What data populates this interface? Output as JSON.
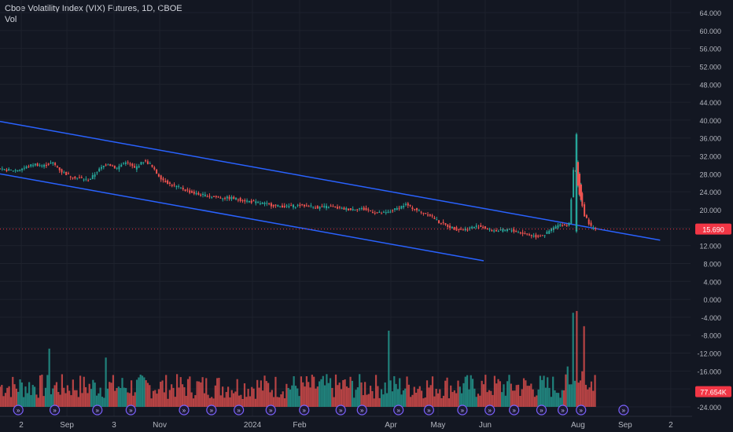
{
  "header": {
    "title": "Cboe Volatility Index (VIX) Futures, 1D, CBOE",
    "vol_label": "Vol"
  },
  "colors": {
    "background": "#131722",
    "grid": "#1e222d",
    "up": "#26a69a",
    "down": "#ef5350",
    "trendline": "#2962ff",
    "price_badge": "#f23645",
    "axis_text": "#b2b5be",
    "event_marker": "#7b61ff"
  },
  "chart_data": {
    "type": "candlestick",
    "symbol": "Cboe Volatility Index (VIX) Futures",
    "interval": "1D",
    "exchange": "CBOE",
    "y_axis": {
      "ticks": [
        "64.000",
        "60.000",
        "56.000",
        "52.000",
        "48.000",
        "44.000",
        "40.000",
        "36.000",
        "32.000",
        "28.000",
        "24.000",
        "20.000",
        "16.000",
        "12.000",
        "8.000",
        "4.000",
        "0.000",
        "-4.000",
        "-8.000",
        "-12.000",
        "-16.000",
        "-20.000",
        "-24.000"
      ],
      "tick_values": [
        64,
        60,
        56,
        52,
        48,
        44,
        40,
        36,
        32,
        28,
        24,
        20,
        16,
        12,
        8,
        4,
        0,
        -4,
        -8,
        -12,
        -16,
        -20,
        -24
      ],
      "range": [
        -25,
        66
      ]
    },
    "x_axis": {
      "ticks": [
        "2",
        "Sep",
        "3",
        "Nov",
        "2024",
        "Feb",
        "Apr",
        "May",
        "Jun",
        "Aug",
        "Sep",
        "2"
      ],
      "tick_days": [
        2,
        32,
        63,
        93,
        154,
        185,
        245,
        276,
        307,
        368,
        399,
        429
      ],
      "range_days": [
        -12,
        442
      ]
    },
    "last_price": {
      "value": 15.69,
      "label": "15.690"
    },
    "last_volume": {
      "label": "77.654K"
    },
    "price_path": [
      [
        -12,
        28.9
      ],
      [
        0,
        28.8
      ],
      [
        6,
        29.4
      ],
      [
        12,
        30.2
      ],
      [
        18,
        29.8
      ],
      [
        24,
        30.5
      ],
      [
        30,
        28.5
      ],
      [
        36,
        27.4
      ],
      [
        42,
        27.0
      ],
      [
        48,
        26.6
      ],
      [
        54,
        28.8
      ],
      [
        60,
        30.4
      ],
      [
        66,
        29.2
      ],
      [
        72,
        30.8
      ],
      [
        78,
        29.2
      ],
      [
        84,
        30.9
      ],
      [
        88,
        30.2
      ],
      [
        92,
        28.3
      ],
      [
        96,
        26.8
      ],
      [
        102,
        25.5
      ],
      [
        108,
        24.9
      ],
      [
        114,
        24.0
      ],
      [
        120,
        23.4
      ],
      [
        126,
        23.1
      ],
      [
        134,
        22.7
      ],
      [
        142,
        22.6
      ],
      [
        148,
        22.2
      ],
      [
        156,
        21.7
      ],
      [
        164,
        21.3
      ],
      [
        170,
        20.9
      ],
      [
        178,
        20.7
      ],
      [
        186,
        21.0
      ],
      [
        192,
        20.9
      ],
      [
        198,
        20.5
      ],
      [
        206,
        20.7
      ],
      [
        214,
        20.2
      ],
      [
        220,
        20.1
      ],
      [
        226,
        20.3
      ],
      [
        232,
        19.8
      ],
      [
        238,
        19.2
      ],
      [
        244,
        19.3
      ],
      [
        250,
        20.2
      ],
      [
        256,
        21.2
      ],
      [
        260,
        20.5
      ],
      [
        266,
        19.5
      ],
      [
        272,
        18.9
      ],
      [
        278,
        17.2
      ],
      [
        284,
        16.3
      ],
      [
        290,
        15.6
      ],
      [
        296,
        15.7
      ],
      [
        302,
        16.3
      ],
      [
        306,
        16.2
      ],
      [
        312,
        15.4
      ],
      [
        318,
        15.3
      ],
      [
        324,
        15.6
      ],
      [
        330,
        15.0
      ],
      [
        336,
        14.5
      ],
      [
        342,
        14.0
      ],
      [
        348,
        14.5
      ],
      [
        352,
        15.7
      ],
      [
        356,
        16.4
      ],
      [
        358,
        16.6
      ],
      [
        362,
        16.5
      ],
      [
        364,
        17.2
      ],
      [
        365,
        22.6
      ],
      [
        366,
        26.7
      ],
      [
        367,
        31.8
      ],
      [
        368,
        28.0
      ],
      [
        369,
        26.0
      ],
      [
        370,
        24.3
      ],
      [
        371,
        23.3
      ],
      [
        372,
        21.4
      ],
      [
        373,
        19.5
      ],
      [
        374,
        18.1
      ],
      [
        376,
        17.7
      ],
      [
        377,
        16.6
      ],
      [
        378,
        16.2
      ],
      [
        379,
        16.0
      ],
      [
        380,
        15.69
      ]
    ],
    "spikes": [
      [
        367,
        37.2,
        14.8
      ],
      [
        368,
        31.0,
        25.0
      ],
      [
        369,
        28.4,
        23.0
      ],
      [
        370,
        26.0,
        21.8
      ]
    ],
    "trendlines": [
      {
        "from": [
          -12,
          39.7
        ],
        "to": [
          422,
          13.2
        ]
      },
      {
        "from": [
          -12,
          28.0
        ],
        "to": [
          306,
          8.6
        ]
      }
    ],
    "volume": {
      "baseline_value": -24,
      "notes": "Volume histogram in lower pane, red/green by candle direction; largest spikes near Aug 2024.",
      "highlights": [
        [
          20,
          -11
        ],
        [
          58,
          -13
        ],
        [
          244,
          -7
        ],
        [
          365,
          -3
        ],
        [
          367,
          -2.6
        ],
        [
          372,
          -6
        ]
      ]
    },
    "event_markers_days": [
      0,
      24,
      52,
      74,
      109,
      127,
      145,
      166,
      188,
      212,
      226,
      250,
      270,
      292,
      310,
      326,
      344,
      358,
      370,
      398
    ]
  }
}
